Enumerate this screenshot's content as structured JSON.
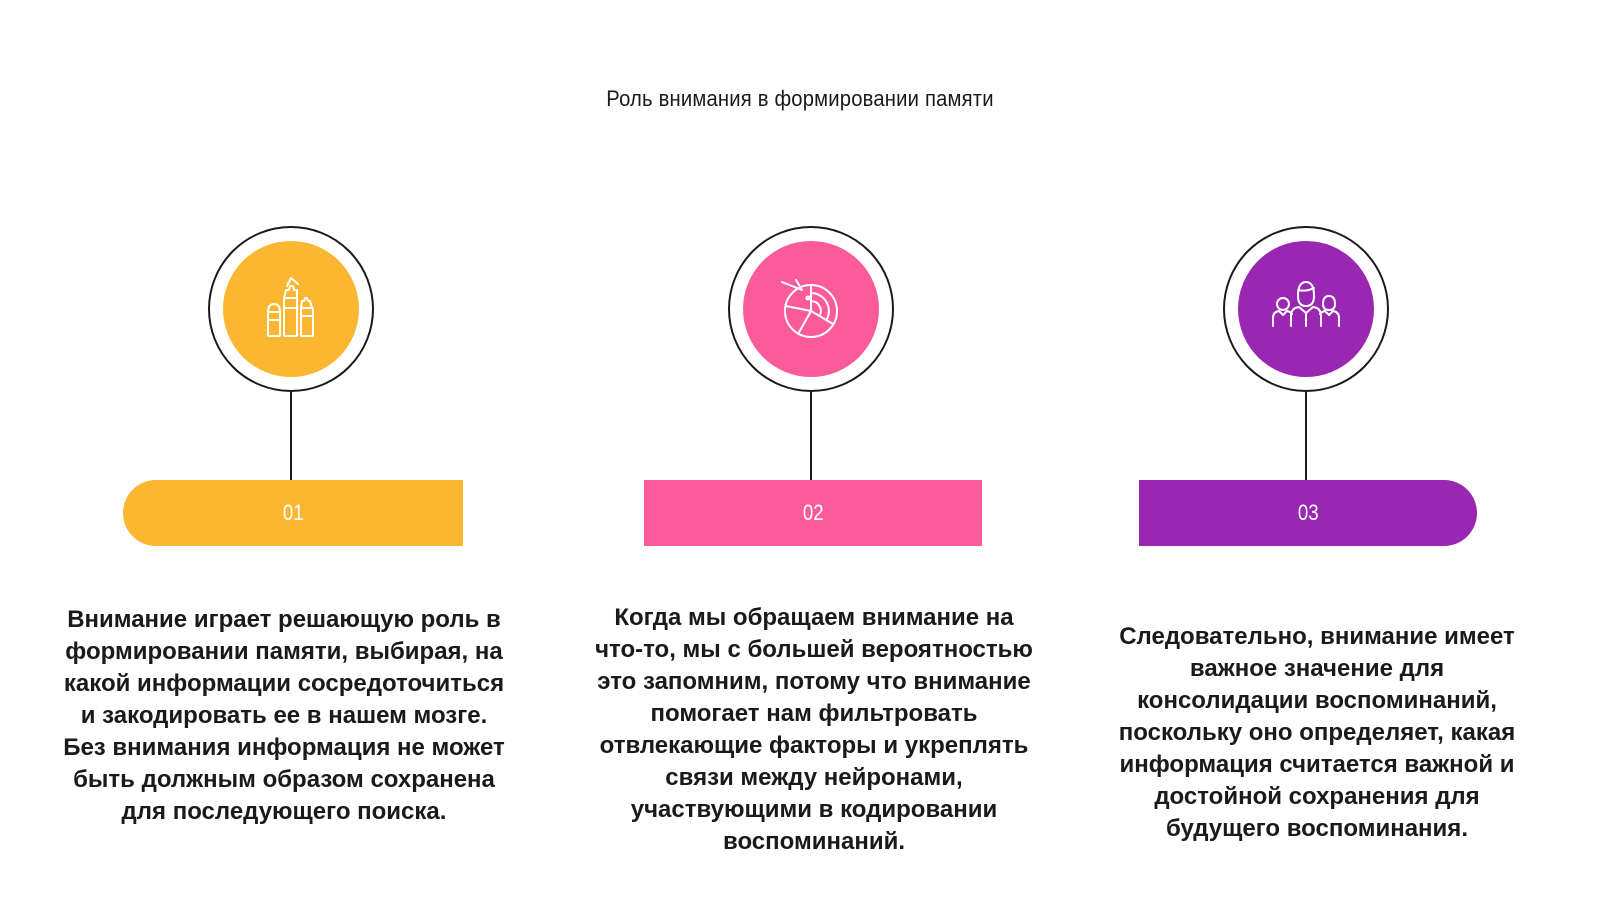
{
  "title": "Роль внимания в формировании памяти",
  "colors": {
    "step1": "#fbb731",
    "step2": "#fc5b9b",
    "step3": "#9a27b2",
    "outline": "#1a1a1a"
  },
  "steps": [
    {
      "number": "01",
      "icon": "hands-raised-icon",
      "text": "Внимание играет решающую роль в формировании памяти, выбирая, на какой информации сосредоточиться и закодировать ее в нашем мозге. Без внимания информация не может быть должным образом сохранена для последующего поиска."
    },
    {
      "number": "02",
      "icon": "radar-pie-icon",
      "text": "Когда мы обращаем внимание на что-то, мы с большей вероятностью это запомним, потому что внимание помогает нам фильтровать отвлекающие факторы и укреплять связи между нейронами, участвующими в кодировании воспоминаний."
    },
    {
      "number": "03",
      "icon": "people-group-icon",
      "text": "Следовательно, внимание имеет важное значение для консолидации воспоминаний, поскольку оно определяет, какая информация считается важной и достойной сохранения для будущего воспоминания."
    }
  ]
}
